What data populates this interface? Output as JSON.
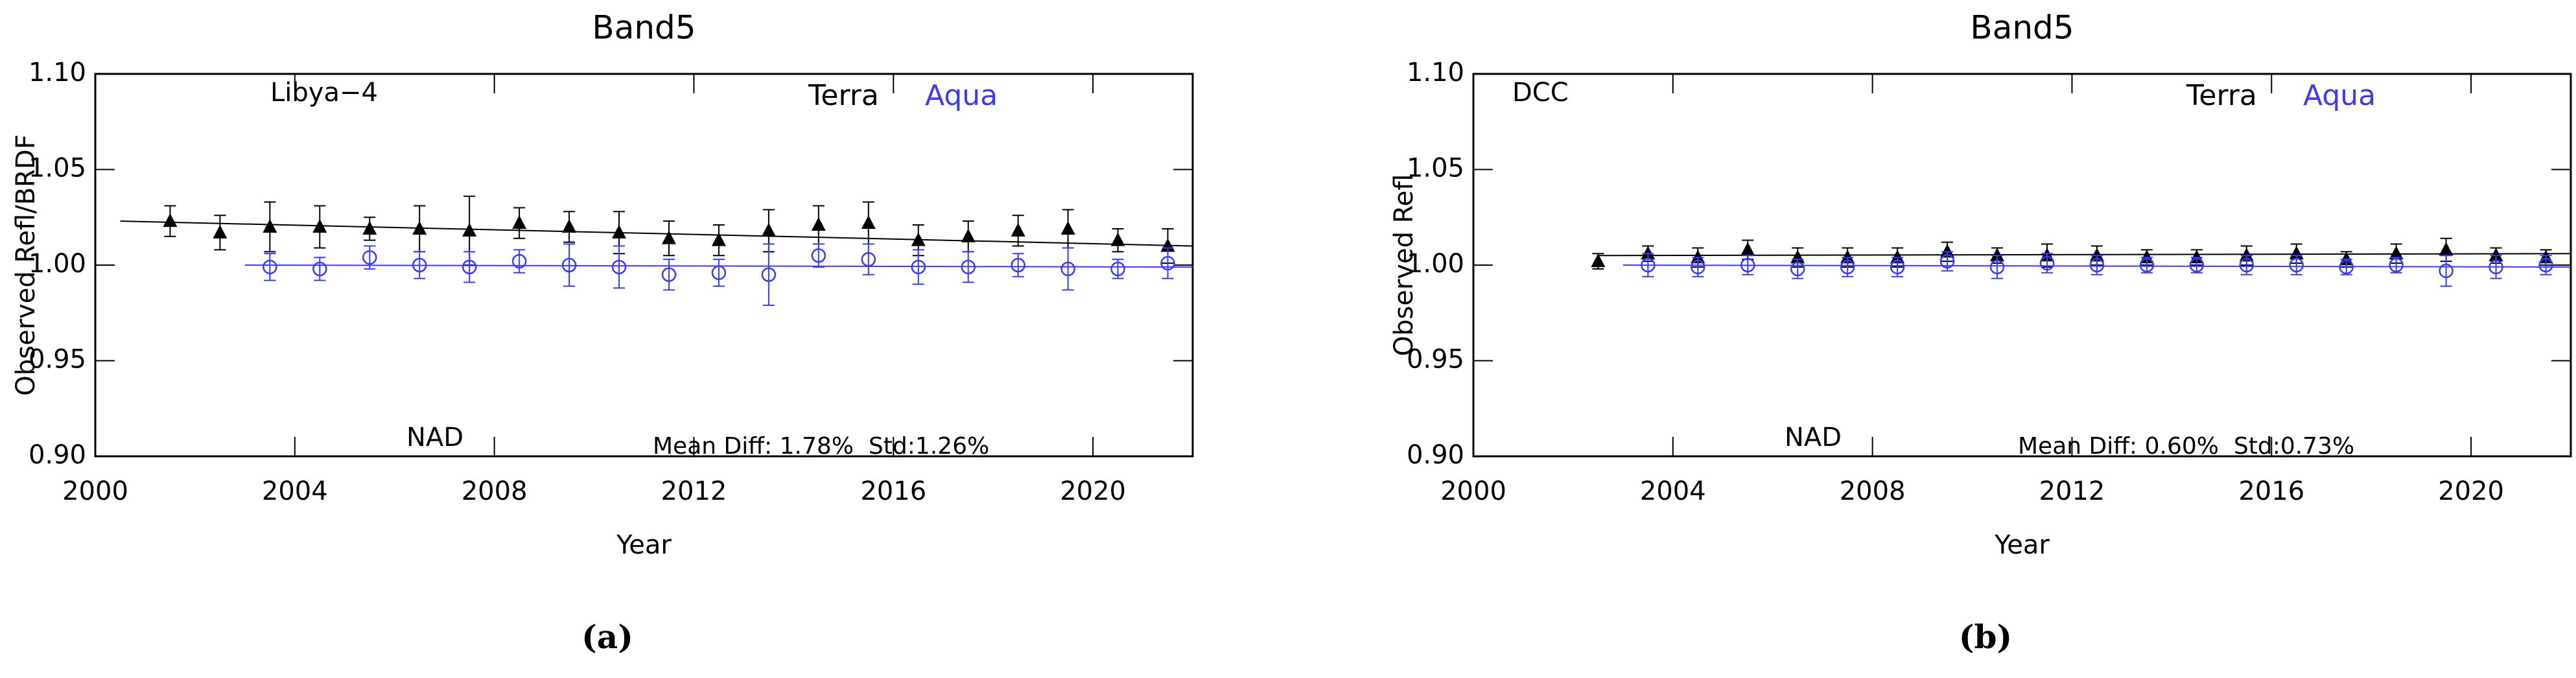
{
  "chart_data": [
    {
      "type": "scatter",
      "title": "Band5",
      "x_label": "Year",
      "y_label": "Observed Refl/BRDF",
      "site": "Libya−4",
      "mode": "NAD",
      "stats": "Mean Diff: 1.78%  Std:1.26%",
      "caption": "(a)",
      "xlim": [
        2000,
        2022
      ],
      "xticks": [
        2000,
        2004,
        2008,
        2012,
        2016,
        2020
      ],
      "ylim": [
        0.9,
        1.1
      ],
      "yticks": [
        {
          "value": 0.9,
          "label": "0.90"
        },
        {
          "value": 0.95,
          "label": "0.95"
        },
        {
          "value": 1.0,
          "label": "1.00"
        },
        {
          "value": 1.05,
          "label": "1.05"
        },
        {
          "value": 1.1,
          "label": "1.10"
        }
      ],
      "series": [
        {
          "name": "Terra",
          "color": "#000000",
          "marker": "triangle",
          "x": [
            2001.5,
            2002.5,
            2003.5,
            2004.5,
            2005.5,
            2006.5,
            2007.5,
            2008.5,
            2009.5,
            2010.5,
            2011.5,
            2012.5,
            2013.5,
            2014.5,
            2015.5,
            2016.5,
            2017.5,
            2018.5,
            2019.5,
            2020.5,
            2021.5
          ],
          "values": [
            1.023,
            1.017,
            1.02,
            1.02,
            1.019,
            1.019,
            1.018,
            1.022,
            1.02,
            1.017,
            1.014,
            1.013,
            1.018,
            1.021,
            1.022,
            1.013,
            1.015,
            1.018,
            1.019,
            1.013,
            1.01
          ],
          "errors": [
            0.008,
            0.009,
            0.013,
            0.011,
            0.006,
            0.012,
            0.018,
            0.008,
            0.008,
            0.011,
            0.009,
            0.008,
            0.011,
            0.01,
            0.011,
            0.008,
            0.008,
            0.008,
            0.01,
            0.006,
            0.009
          ],
          "fit_x": [
            2000.5,
            2022
          ],
          "fit": [
            1.023,
            1.01
          ]
        },
        {
          "name": "Aqua",
          "color": "#3a3aff",
          "marker": "circle",
          "x": [
            2003.5,
            2004.5,
            2005.5,
            2006.5,
            2007.5,
            2008.5,
            2009.5,
            2010.5,
            2011.5,
            2012.5,
            2013.5,
            2014.5,
            2015.5,
            2016.5,
            2017.5,
            2018.5,
            2019.5,
            2020.5,
            2021.5
          ],
          "values": [
            0.999,
            0.998,
            1.004,
            1.0,
            0.999,
            1.002,
            1.0,
            0.999,
            0.995,
            0.996,
            0.995,
            1.005,
            1.003,
            0.999,
            0.999,
            1.0,
            0.998,
            0.998,
            1.001
          ],
          "errors": [
            0.007,
            0.006,
            0.006,
            0.007,
            0.008,
            0.006,
            0.011,
            0.011,
            0.008,
            0.007,
            0.016,
            0.006,
            0.008,
            0.009,
            0.008,
            0.006,
            0.011,
            0.005,
            0.008
          ],
          "fit_x": [
            2003,
            2022
          ],
          "fit": [
            1.0,
            0.999
          ]
        }
      ]
    },
    {
      "type": "scatter",
      "title": "Band5",
      "x_label": "Year",
      "y_label": "Observed Refl",
      "site": "DCC",
      "mode": "NAD",
      "stats": "Mean Diff: 0.60%  Std:0.73%",
      "caption": "(b)",
      "xlim": [
        2000,
        2022
      ],
      "xticks": [
        2000,
        2004,
        2008,
        2012,
        2016,
        2020
      ],
      "ylim": [
        0.9,
        1.1
      ],
      "yticks": [
        {
          "value": 0.9,
          "label": "0.90"
        },
        {
          "value": 0.95,
          "label": "0.95"
        },
        {
          "value": 1.0,
          "label": "1.00"
        },
        {
          "value": 1.05,
          "label": "1.05"
        },
        {
          "value": 1.1,
          "label": "1.10"
        }
      ],
      "series": [
        {
          "name": "Terra",
          "color": "#000000",
          "marker": "triangle",
          "x": [
            2002.5,
            2003.5,
            2004.5,
            2005.5,
            2006.5,
            2007.5,
            2008.5,
            2009.5,
            2010.5,
            2011.5,
            2012.5,
            2013.5,
            2014.5,
            2015.5,
            2016.5,
            2017.5,
            2018.5,
            2019.5,
            2020.5,
            2021.5
          ],
          "values": [
            1.002,
            1.006,
            1.004,
            1.008,
            1.004,
            1.004,
            1.004,
            1.007,
            1.005,
            1.005,
            1.005,
            1.004,
            1.004,
            1.005,
            1.006,
            1.003,
            1.006,
            1.008,
            1.005,
            1.004
          ],
          "errors": [
            0.004,
            0.004,
            0.005,
            0.005,
            0.005,
            0.005,
            0.005,
            0.005,
            0.004,
            0.006,
            0.005,
            0.004,
            0.004,
            0.005,
            0.005,
            0.004,
            0.005,
            0.006,
            0.004,
            0.004
          ],
          "fit_x": [
            2002.5,
            2022
          ],
          "fit": [
            1.005,
            1.006
          ]
        },
        {
          "name": "Aqua",
          "color": "#3a3aff",
          "marker": "circle",
          "x": [
            2003.5,
            2004.5,
            2005.5,
            2006.5,
            2007.5,
            2008.5,
            2009.5,
            2010.5,
            2011.5,
            2012.5,
            2013.5,
            2014.5,
            2015.5,
            2016.5,
            2017.5,
            2018.5,
            2019.5,
            2020.5,
            2021.5
          ],
          "values": [
            1.0,
            0.999,
            1.0,
            0.998,
            0.999,
            0.999,
            1.002,
            0.999,
            1.001,
            1.0,
            1.0,
            1.0,
            1.0,
            1.0,
            0.999,
            1.0,
            0.997,
            0.999,
            1.0
          ],
          "errors": [
            0.006,
            0.005,
            0.005,
            0.005,
            0.005,
            0.005,
            0.005,
            0.006,
            0.005,
            0.005,
            0.004,
            0.004,
            0.005,
            0.005,
            0.004,
            0.004,
            0.008,
            0.006,
            0.005
          ],
          "fit_x": [
            2003,
            2022
          ],
          "fit": [
            1.0,
            0.999
          ]
        }
      ]
    }
  ]
}
